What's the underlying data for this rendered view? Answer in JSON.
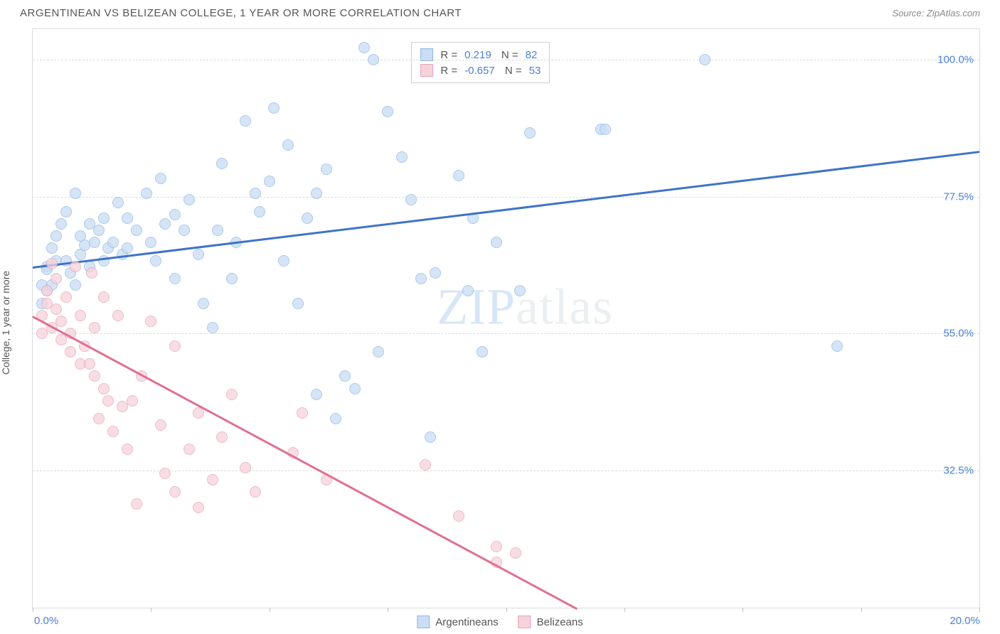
{
  "header": {
    "title": "ARGENTINEAN VS BELIZEAN COLLEGE, 1 YEAR OR MORE CORRELATION CHART",
    "source_prefix": "Source: ",
    "source_name": "ZipAtlas.com"
  },
  "watermark": {
    "zip": "ZIP",
    "atlas": "atlas"
  },
  "chart": {
    "type": "scatter",
    "ylabel": "College, 1 year or more",
    "xlim": [
      0,
      20
    ],
    "ylim": [
      10,
      105
    ],
    "background_color": "#ffffff",
    "border_color": "#dcdcdc",
    "grid_color": "#dcdcdc",
    "axis_label_color": "#4a7fd8",
    "ytick_positions": [
      32.5,
      55.0,
      77.5,
      100.0
    ],
    "ytick_labels": [
      "32.5%",
      "55.0%",
      "77.5%",
      "100.0%"
    ],
    "xtick_positions": [
      0,
      2.5,
      5.0,
      7.5,
      10.0,
      12.5,
      15.0,
      17.5,
      20.0
    ],
    "xtick_label_left": "0.0%",
    "xtick_label_right": "20.0%",
    "marker_radius": 8,
    "line_width": 2.5,
    "series": [
      {
        "name": "Argentineans",
        "fill": "#c9ddf4",
        "stroke": "#8fb8e6",
        "fill_opacity": 0.75,
        "line_color": "#3f73c9",
        "trend": {
          "x1": 0,
          "y1": 66,
          "x2": 20,
          "y2": 85
        },
        "R": "0.219",
        "N": "82",
        "points": [
          [
            0.2,
            63
          ],
          [
            0.2,
            60
          ],
          [
            0.3,
            66
          ],
          [
            0.3,
            65.5
          ],
          [
            0.4,
            69
          ],
          [
            0.3,
            62
          ],
          [
            0.4,
            63
          ],
          [
            0.5,
            67
          ],
          [
            0.5,
            71
          ],
          [
            0.6,
            73
          ],
          [
            0.7,
            75
          ],
          [
            0.7,
            67
          ],
          [
            0.8,
            65
          ],
          [
            0.9,
            63
          ],
          [
            0.9,
            78
          ],
          [
            1.0,
            71
          ],
          [
            1.0,
            68
          ],
          [
            1.1,
            69.5
          ],
          [
            1.2,
            66
          ],
          [
            1.2,
            73
          ],
          [
            1.3,
            70
          ],
          [
            1.4,
            72
          ],
          [
            1.5,
            74
          ],
          [
            1.5,
            67
          ],
          [
            1.6,
            69
          ],
          [
            1.7,
            70
          ],
          [
            1.8,
            76.5
          ],
          [
            1.9,
            68
          ],
          [
            2.0,
            74
          ],
          [
            2.0,
            69
          ],
          [
            2.2,
            72
          ],
          [
            2.4,
            78
          ],
          [
            2.5,
            70
          ],
          [
            2.6,
            67
          ],
          [
            2.7,
            80.5
          ],
          [
            2.8,
            73
          ],
          [
            3.0,
            64
          ],
          [
            3.0,
            74.5
          ],
          [
            3.2,
            72
          ],
          [
            3.3,
            77
          ],
          [
            3.5,
            68
          ],
          [
            3.6,
            60
          ],
          [
            3.8,
            56
          ],
          [
            3.9,
            72
          ],
          [
            4.0,
            83
          ],
          [
            4.2,
            64
          ],
          [
            4.3,
            70
          ],
          [
            4.5,
            90
          ],
          [
            4.7,
            78
          ],
          [
            4.8,
            75
          ],
          [
            5.0,
            80
          ],
          [
            5.1,
            92
          ],
          [
            5.3,
            67
          ],
          [
            5.4,
            86
          ],
          [
            5.6,
            60
          ],
          [
            5.8,
            74
          ],
          [
            6.0,
            78
          ],
          [
            6.0,
            45
          ],
          [
            6.2,
            82
          ],
          [
            6.4,
            41
          ],
          [
            6.6,
            48
          ],
          [
            6.8,
            46
          ],
          [
            7.0,
            102
          ],
          [
            7.2,
            100
          ],
          [
            7.3,
            52
          ],
          [
            7.5,
            91.5
          ],
          [
            7.8,
            84
          ],
          [
            8.0,
            77
          ],
          [
            8.2,
            64
          ],
          [
            8.4,
            38
          ],
          [
            8.5,
            65
          ],
          [
            9.0,
            81
          ],
          [
            9.2,
            62
          ],
          [
            9.3,
            74
          ],
          [
            9.5,
            52
          ],
          [
            9.8,
            70
          ],
          [
            10.3,
            62
          ],
          [
            10.5,
            88
          ],
          [
            12.0,
            88.5
          ],
          [
            12.1,
            88.5
          ],
          [
            14.2,
            100
          ],
          [
            17.0,
            53
          ]
        ]
      },
      {
        "name": "Belizeans",
        "fill": "#f6d3db",
        "stroke": "#eaa3b5",
        "fill_opacity": 0.75,
        "line_color": "#e0708f",
        "trend": {
          "x1": 0,
          "y1": 58,
          "x2": 11.5,
          "y2": 10
        },
        "R": "-0.657",
        "N": "53",
        "points": [
          [
            0.2,
            58
          ],
          [
            0.2,
            55
          ],
          [
            0.3,
            62
          ],
          [
            0.3,
            60
          ],
          [
            0.4,
            56
          ],
          [
            0.4,
            66.5
          ],
          [
            0.5,
            64
          ],
          [
            0.5,
            59
          ],
          [
            0.6,
            54
          ],
          [
            0.6,
            57
          ],
          [
            0.7,
            61
          ],
          [
            0.8,
            52
          ],
          [
            0.8,
            55
          ],
          [
            0.9,
            66
          ],
          [
            1.0,
            50
          ],
          [
            1.0,
            58
          ],
          [
            1.1,
            53
          ],
          [
            1.2,
            50
          ],
          [
            1.25,
            65
          ],
          [
            1.3,
            48
          ],
          [
            1.3,
            56
          ],
          [
            1.4,
            41
          ],
          [
            1.5,
            46
          ],
          [
            1.5,
            61
          ],
          [
            1.6,
            44
          ],
          [
            1.7,
            39
          ],
          [
            1.8,
            58
          ],
          [
            1.9,
            43
          ],
          [
            2.0,
            36
          ],
          [
            2.1,
            44
          ],
          [
            2.2,
            27
          ],
          [
            2.3,
            48
          ],
          [
            2.5,
            57
          ],
          [
            2.7,
            40
          ],
          [
            2.8,
            32
          ],
          [
            3.0,
            29
          ],
          [
            3.0,
            53
          ],
          [
            3.3,
            36
          ],
          [
            3.5,
            42
          ],
          [
            3.5,
            26.5
          ],
          [
            3.8,
            31
          ],
          [
            4.0,
            38
          ],
          [
            4.2,
            45
          ],
          [
            4.5,
            33
          ],
          [
            4.7,
            29
          ],
          [
            5.5,
            35.5
          ],
          [
            5.7,
            42
          ],
          [
            6.2,
            31
          ],
          [
            8.3,
            33.5
          ],
          [
            9.0,
            25
          ],
          [
            9.8,
            20
          ],
          [
            9.8,
            17.5
          ],
          [
            10.2,
            19
          ]
        ]
      }
    ],
    "legend": {
      "bottom": [
        {
          "label": "Argentineans",
          "fill": "#c9ddf4",
          "stroke": "#8fb8e6"
        },
        {
          "label": "Belizeans",
          "fill": "#f6d3db",
          "stroke": "#eaa3b5"
        }
      ],
      "stats_box": [
        {
          "fill": "#c9ddf4",
          "stroke": "#8fb8e6",
          "R": "0.219",
          "N": "82"
        },
        {
          "fill": "#f6d3db",
          "stroke": "#eaa3b5",
          "R": "-0.657",
          "N": "53"
        }
      ]
    }
  }
}
